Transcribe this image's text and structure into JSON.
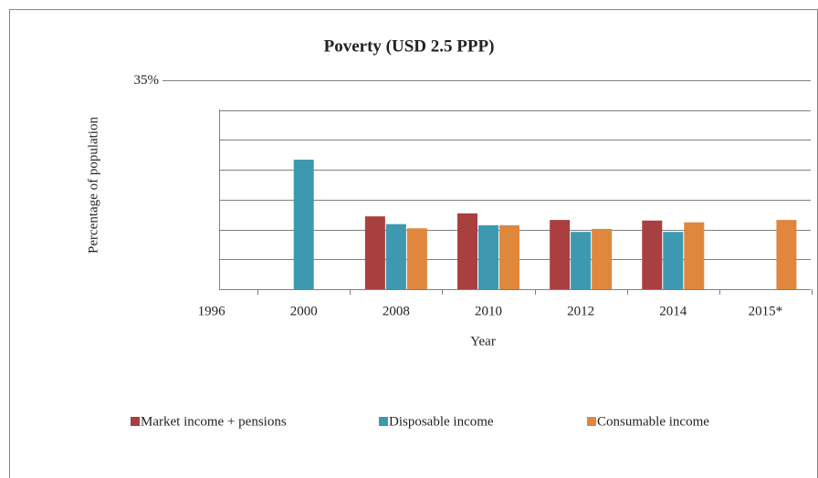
{
  "chart_data": {
    "type": "bar",
    "title": "Poverty (USD 2.5 PPP)",
    "x_label": "Year",
    "y_label": "Percentage of population",
    "categories": [
      "1996",
      "2000",
      "2008",
      "2010",
      "2012",
      "2014",
      "2015*"
    ],
    "series": [
      {
        "name": "Market income + pensions",
        "color": "#a9403f",
        "values": [
          null,
          null,
          12.2,
          12.7,
          11.6,
          11.5,
          null
        ]
      },
      {
        "name": "Disposable income",
        "color": "#3e99b0",
        "values": [
          null,
          21.7,
          10.9,
          10.7,
          9.6,
          9.6,
          null
        ]
      },
      {
        "name": "Consumable income",
        "color": "#e0873e",
        "values": [
          null,
          null,
          10.2,
          10.7,
          10.1,
          11.2,
          11.6
        ]
      }
    ],
    "ylim": [
      0,
      35
    ],
    "yticks": [
      {
        "value": 35,
        "label": "35%"
      }
    ],
    "grid_values": [
      5,
      10,
      15,
      20,
      25,
      30
    ],
    "grid": true
  }
}
